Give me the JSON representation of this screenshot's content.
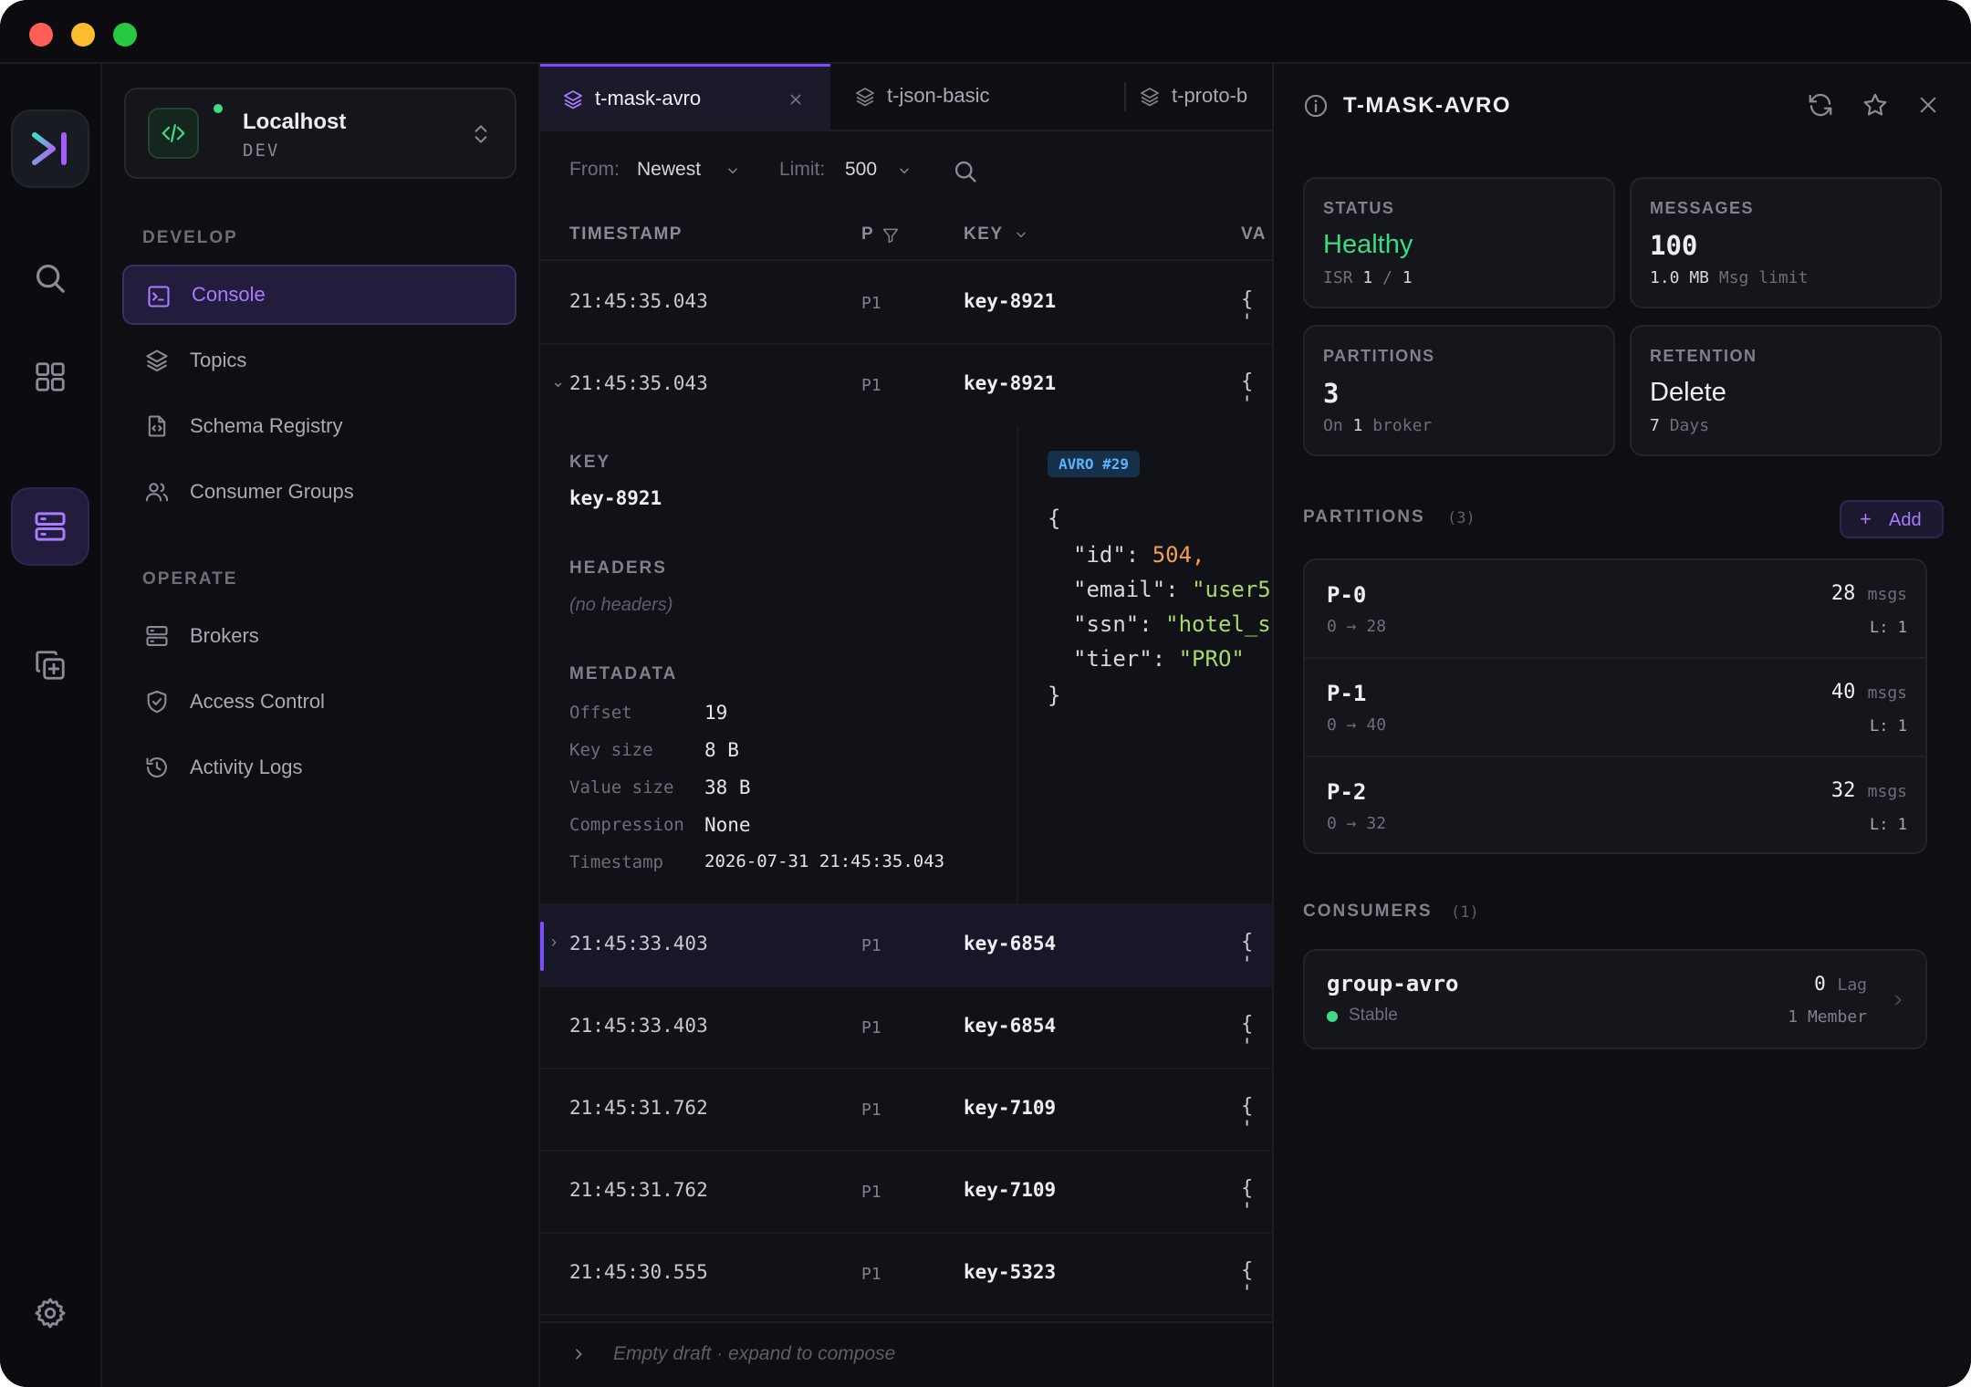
{
  "sidebar": {
    "env_name": "Localhost",
    "env_tag": "DEV",
    "develop_label": "DEVELOP",
    "operate_label": "OPERATE",
    "develop_items": [
      {
        "label": "Console",
        "icon": "terminal-icon"
      },
      {
        "label": "Topics",
        "icon": "layers-icon"
      },
      {
        "label": "Schema Registry",
        "icon": "file-code-icon"
      },
      {
        "label": "Consumer Groups",
        "icon": "users-icon"
      }
    ],
    "operate_items": [
      {
        "label": "Brokers",
        "icon": "server-icon"
      },
      {
        "label": "Access Control",
        "icon": "shield-icon"
      },
      {
        "label": "Activity Logs",
        "icon": "history-icon"
      }
    ]
  },
  "tabs": [
    {
      "label": "t-mask-avro",
      "active": true
    },
    {
      "label": "t-json-basic"
    },
    {
      "label": "t-proto-b"
    }
  ],
  "filter": {
    "from_label": "From:",
    "from_value": "Newest",
    "limit_label": "Limit:",
    "limit_value": "500"
  },
  "table": {
    "headers": {
      "timestamp": "TIMESTAMP",
      "partition": "P",
      "key": "KEY",
      "value": "VA"
    },
    "rows": [
      {
        "ts": "21:45:35.043",
        "p": "P1",
        "key": "key-8921",
        "val": "{ '"
      },
      {
        "ts": "21:45:35.043",
        "p": "P1",
        "key": "key-8921",
        "val": "{ '"
      },
      {
        "ts": "21:45:33.403",
        "p": "P1",
        "key": "key-6854",
        "val": "{ '"
      },
      {
        "ts": "21:45:33.403",
        "p": "P1",
        "key": "key-6854",
        "val": "{ '"
      },
      {
        "ts": "21:45:31.762",
        "p": "P1",
        "key": "key-7109",
        "val": "{ '"
      },
      {
        "ts": "21:45:31.762",
        "p": "P1",
        "key": "key-7109",
        "val": "{ '"
      },
      {
        "ts": "21:45:30.555",
        "p": "P1",
        "key": "key-5323",
        "val": "{ '"
      }
    ]
  },
  "detail": {
    "key_label": "KEY",
    "key_value": "key-8921",
    "headers_label": "HEADERS",
    "headers_value": "(no headers)",
    "metadata_label": "METADATA",
    "metadata": [
      {
        "k": "Offset",
        "v": "19"
      },
      {
        "k": "Key size",
        "v": "8 B"
      },
      {
        "k": "Value size",
        "v": "38 B"
      },
      {
        "k": "Compression",
        "v": "None"
      },
      {
        "k": "Timestamp",
        "v": "2026-07-31 21:45:35.043"
      }
    ],
    "schema_badge": "AVRO #29",
    "json": {
      "open": "{",
      "id_key": "\"id\"",
      "id_val": "504,",
      "email_key": "\"email\"",
      "email_val": "\"user5",
      "ssn_key": "\"ssn\"",
      "ssn_val": "\"hotel_s",
      "tier_key": "\"tier\"",
      "tier_val": "\"PRO\"",
      "close": "}"
    }
  },
  "composer": {
    "placeholder": "Empty draft · expand to compose"
  },
  "panel": {
    "title": "T-MASK-AVRO",
    "status": {
      "label": "STATUS",
      "value": "Healthy",
      "isr_label": "ISR",
      "isr_in": "1",
      "isr_sep": "/",
      "isr_total": "1"
    },
    "messages": {
      "label": "MESSAGES",
      "value": "100",
      "size": "1.0 MB",
      "sub": "Msg limit"
    },
    "partitions_card": {
      "label": "PARTITIONS",
      "value": "3",
      "on": "On",
      "brokers": "1",
      "broker_word": "broker"
    },
    "retention": {
      "label": "RETENTION",
      "value": "Delete",
      "days": "7",
      "days_word": "Days"
    },
    "partitions_title": "PARTITIONS",
    "partitions_count": "(3)",
    "add_label": "Add",
    "partitions": [
      {
        "name": "P-0",
        "range_start": "0",
        "range_end": "28",
        "count": "28",
        "unit": "msgs",
        "leader": "L: 1"
      },
      {
        "name": "P-1",
        "range_start": "0",
        "range_end": "40",
        "count": "40",
        "unit": "msgs",
        "leader": "L: 1"
      },
      {
        "name": "P-2",
        "range_start": "0",
        "range_end": "32",
        "count": "32",
        "unit": "msgs",
        "leader": "L: 1"
      }
    ],
    "consumers_title": "CONSUMERS",
    "consumers_count": "(1)",
    "consumer": {
      "name": "group-avro",
      "state": "Stable",
      "lag": "0",
      "lag_word": "Lag",
      "members": "1 Member"
    }
  },
  "colors": {
    "accent": "#7c4dff",
    "healthy": "#3ddc84",
    "json_number": "#f0a050",
    "json_string": "#a8d86a"
  }
}
